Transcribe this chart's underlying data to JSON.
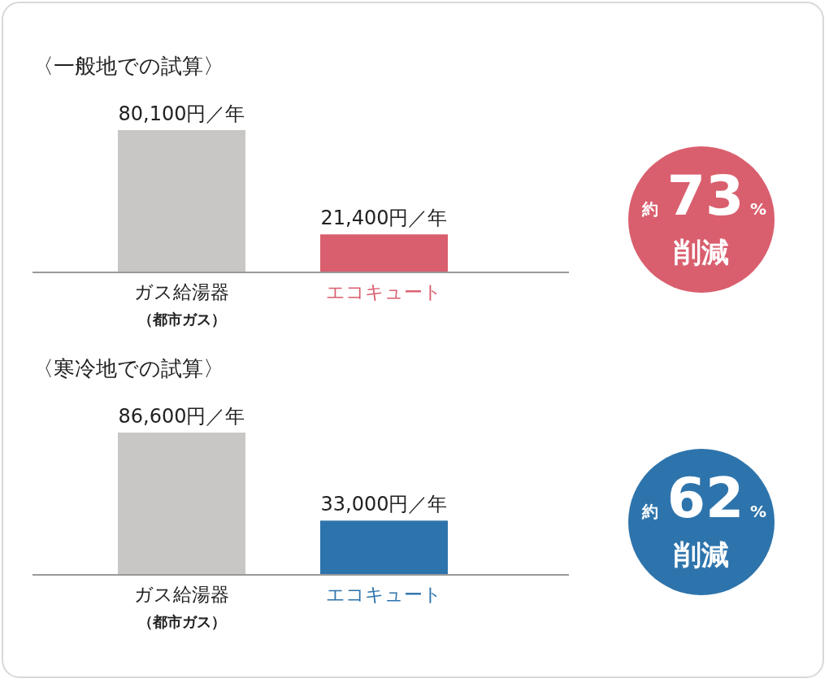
{
  "chart_data": [
    {
      "type": "bar",
      "title": "〈一般地での試算〉",
      "categories": [
        "ガス給湯器（都市ガス）",
        "エコキュート"
      ],
      "values": [
        80100,
        21400
      ],
      "colors": [
        "#c8c7c5",
        "#d95f6e"
      ],
      "value_labels": [
        "80,100円／年",
        "21,400円／年"
      ],
      "annotations": [
        "約",
        "73",
        "%",
        "削減"
      ]
    },
    {
      "type": "bar",
      "title": "〈寒冷地での試算〉",
      "categories": [
        "ガス給湯器（都市ガス）",
        "エコキュート"
      ],
      "values": [
        86600,
        33000
      ],
      "colors": [
        "#c8c7c5",
        "#2e74ac"
      ],
      "value_labels": [
        "86,600円／年",
        "33,000円／年"
      ],
      "annotations": [
        "約",
        "62",
        "%",
        "削減"
      ]
    }
  ]
}
